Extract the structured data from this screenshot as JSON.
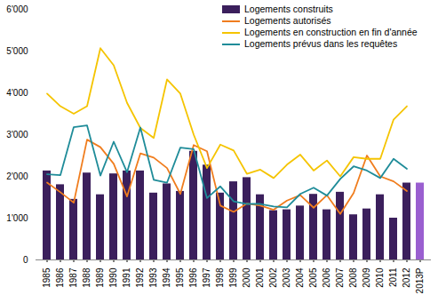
{
  "chart_data": {
    "type": "bar",
    "categories": [
      "1985",
      "1986",
      "1987",
      "1988",
      "1989",
      "1990",
      "1991",
      "1992",
      "1993",
      "1994",
      "1995",
      "1996",
      "1997",
      "1998",
      "1999",
      "2000",
      "2001",
      "2002",
      "2003",
      "2004",
      "2005",
      "2006",
      "2007",
      "2008",
      "2009",
      "2010",
      "2011",
      "2012",
      "2013P"
    ],
    "ylim": [
      0,
      6000
    ],
    "yticks": [
      0,
      {
        "value": 1000,
        "label": "1'000"
      },
      {
        "value": 2000,
        "label": "2'000"
      },
      {
        "value": 3000,
        "label": "3'000"
      },
      {
        "value": 4000,
        "label": "4'000"
      },
      {
        "value": 5000,
        "label": "5'000"
      },
      {
        "value": 6000,
        "label": "6'000"
      }
    ],
    "grid": false,
    "legend": "top-right",
    "series": [
      {
        "name": "Logements construits",
        "type": "bar",
        "color": "#3b1f5c",
        "colors": [
          "#3b1f5c",
          "#3b1f5c",
          "#3b1f5c",
          "#3b1f5c",
          "#3b1f5c",
          "#3b1f5c",
          "#3b1f5c",
          "#3b1f5c",
          "#3b1f5c",
          "#3b1f5c",
          "#3b1f5c",
          "#3b1f5c",
          "#3b1f5c",
          "#3b1f5c",
          "#3b1f5c",
          "#3b1f5c",
          "#3b1f5c",
          "#3b1f5c",
          "#3b1f5c",
          "#3b1f5c",
          "#3b1f5c",
          "#3b1f5c",
          "#3b1f5c",
          "#3b1f5c",
          "#3b1f5c",
          "#3b1f5c",
          "#3b1f5c",
          "#3b1f5c",
          "#9a5fd0"
        ],
        "values": [
          2130,
          1800,
          1450,
          2080,
          1560,
          2060,
          2130,
          2130,
          1600,
          1820,
          1640,
          2600,
          2270,
          1600,
          1870,
          1970,
          1560,
          1180,
          1200,
          1290,
          1570,
          1200,
          1620,
          1080,
          1220,
          1560,
          1000,
          1840,
          1840
        ]
      },
      {
        "name": "Logements autorisés",
        "type": "line",
        "color": "#f07d1e",
        "values": [
          1850,
          1620,
          1370,
          2880,
          2700,
          2300,
          1520,
          2550,
          2450,
          2200,
          1580,
          2750,
          2600,
          1300,
          1150,
          1350,
          1300,
          1200,
          1420,
          1550,
          1250,
          1550,
          1100,
          1600,
          2500,
          2000,
          1880,
          1650,
          null
        ]
      },
      {
        "name": "Logements en construction en fin d'année",
        "type": "line",
        "color": "#f5c400",
        "values": [
          3980,
          3680,
          3500,
          3680,
          5070,
          4660,
          3760,
          3160,
          2920,
          4320,
          3980,
          3000,
          2200,
          2760,
          2620,
          2060,
          2160,
          1960,
          2280,
          2520,
          2140,
          2380,
          2000,
          2460,
          2420,
          2420,
          3360,
          3680,
          null
        ]
      },
      {
        "name": "Logements prévus dans les requêtes",
        "type": "line",
        "color": "#1f8c99",
        "values": [
          2050,
          2030,
          3180,
          3220,
          2020,
          2830,
          2100,
          3170,
          1920,
          1850,
          2690,
          2650,
          1480,
          1760,
          1400,
          1340,
          1340,
          1280,
          1260,
          1580,
          1730,
          1540,
          1940,
          2240,
          2140,
          1960,
          2420,
          2180,
          null
        ]
      }
    ]
  }
}
